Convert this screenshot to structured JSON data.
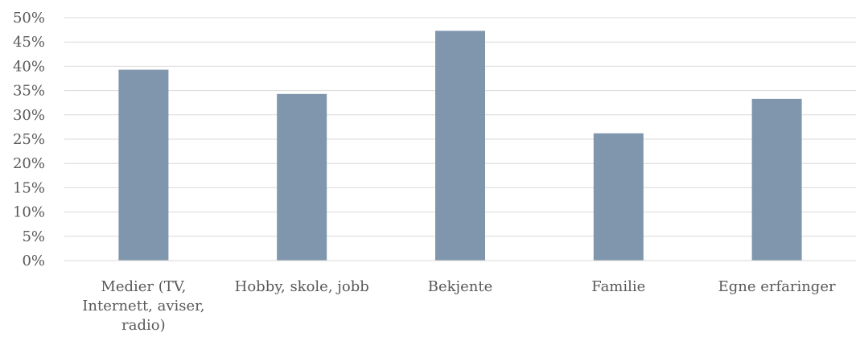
{
  "chart_data": {
    "type": "bar",
    "categories": [
      [
        "Medier (TV,",
        "Internett, aviser,",
        "radio)"
      ],
      [
        "Hobby, skole, jobb"
      ],
      [
        "Bekjente"
      ],
      [
        "Familie"
      ],
      [
        "Egne erfaringer"
      ]
    ],
    "values": [
      39.3,
      34.3,
      47.3,
      26.2,
      33.3
    ],
    "y_ticks": [
      "0%",
      "5%",
      "10%",
      "15%",
      "20%",
      "25%",
      "30%",
      "35%",
      "40%",
      "45%",
      "50%"
    ],
    "ylim": [
      0,
      50
    ],
    "grid": true,
    "bar_color": "#7f96ac",
    "grid_color": "#d9d9d9",
    "title": "",
    "xlabel": "",
    "ylabel": ""
  }
}
